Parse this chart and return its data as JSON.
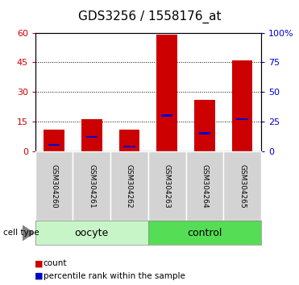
{
  "title": "GDS3256 / 1558176_at",
  "samples": [
    "GSM304260",
    "GSM304261",
    "GSM304262",
    "GSM304263",
    "GSM304264",
    "GSM304265"
  ],
  "count_values": [
    11,
    16,
    11,
    59,
    26,
    46
  ],
  "percentile_values": [
    5,
    12,
    4,
    30,
    15,
    27
  ],
  "groups": [
    {
      "label": "oocyte",
      "indices": [
        0,
        1,
        2
      ],
      "color": "#c8f5c8"
    },
    {
      "label": "control",
      "indices": [
        3,
        4,
        5
      ],
      "color": "#55dd55"
    }
  ],
  "ylim_left": [
    0,
    60
  ],
  "ylim_right": [
    0,
    100
  ],
  "yticks_left": [
    0,
    15,
    30,
    45,
    60
  ],
  "yticks_right": [
    0,
    25,
    50,
    75,
    100
  ],
  "ytick_labels_right": [
    "0",
    "25",
    "50",
    "75",
    "100%"
  ],
  "bar_color": "#cc0000",
  "percentile_color": "#0000cc",
  "grid_color": "black",
  "left_tick_color": "#cc0000",
  "right_tick_color": "#0000cc",
  "bar_width": 0.55,
  "background_color": "white",
  "legend_count_label": "count",
  "legend_percentile_label": "percentile rank within the sample",
  "cell_type_label": "cell type",
  "title_fontsize": 11,
  "tick_fontsize": 8,
  "sample_label_fontsize": 6.5,
  "group_label_fontsize": 9,
  "legend_fontsize": 7.5
}
